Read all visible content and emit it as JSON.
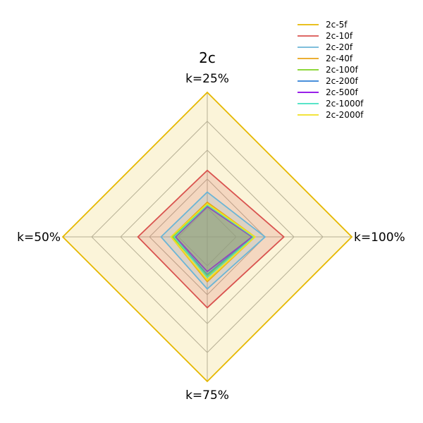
{
  "chart_data": {
    "type": "radar",
    "title": "2c",
    "axes": [
      "k=25%",
      "k=100%",
      "k=75%",
      "k=50%"
    ],
    "rmax": 1.0,
    "grid_levels": [
      0.2,
      0.4,
      0.6,
      0.8,
      1.0
    ],
    "legend_position": "top-right",
    "series": [
      {
        "name": "2c-5f",
        "color": "#e6b800",
        "values": [
          1.0,
          1.0,
          1.0,
          1.0
        ],
        "fill": true
      },
      {
        "name": "2c-10f",
        "color": "#d9534f",
        "values": [
          0.46,
          0.53,
          0.49,
          0.48
        ],
        "fill": true
      },
      {
        "name": "2c-20f",
        "color": "#6bb5d6",
        "values": [
          0.31,
          0.4,
          0.36,
          0.32
        ],
        "fill": true
      },
      {
        "name": "2c-40f",
        "color": "#e8a317",
        "values": [
          0.24,
          0.33,
          0.31,
          0.25
        ],
        "fill": true
      },
      {
        "name": "2c-100f",
        "color": "#7ed321",
        "values": [
          0.23,
          0.32,
          0.27,
          0.24
        ],
        "fill": true
      },
      {
        "name": "2c-200f",
        "color": "#2f7fd6",
        "values": [
          0.22,
          0.31,
          0.26,
          0.23
        ],
        "fill": true
      },
      {
        "name": "2c-500f",
        "color": "#8a00e6",
        "values": [
          0.21,
          0.31,
          0.24,
          0.22
        ],
        "fill": true
      },
      {
        "name": "2c-1000f",
        "color": "#40e0c0",
        "values": [
          0.22,
          0.32,
          0.28,
          0.23
        ],
        "fill": true
      },
      {
        "name": "2c-2000f",
        "color": "#f0e020",
        "values": [
          0.23,
          0.33,
          0.3,
          0.25
        ],
        "fill": true
      }
    ]
  }
}
